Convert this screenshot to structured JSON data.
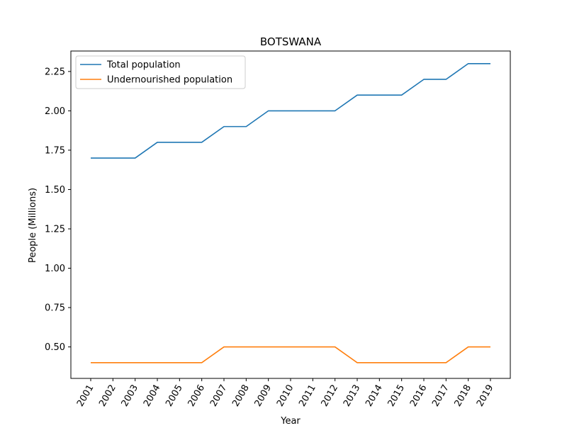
{
  "chart_data": {
    "type": "line",
    "title": "BOTSWANA",
    "xlabel": "Year",
    "ylabel": "People (Millions)",
    "x": [
      "2001",
      "2002",
      "2003",
      "2004",
      "2005",
      "2006",
      "2007",
      "2008",
      "2009",
      "2010",
      "2011",
      "2012",
      "2013",
      "2014",
      "2015",
      "2016",
      "2017",
      "2018",
      "2019"
    ],
    "ylim": [
      0.3,
      2.38
    ],
    "yticks": [
      "0.50",
      "0.75",
      "1.00",
      "1.25",
      "1.50",
      "1.75",
      "2.00",
      "2.25"
    ],
    "grid": false,
    "legend_position": "top-left",
    "series": [
      {
        "name": "Total population",
        "color": "#1f77b4",
        "values": [
          1.7,
          1.7,
          1.7,
          1.8,
          1.8,
          1.8,
          1.9,
          1.9,
          2.0,
          2.0,
          2.0,
          2.0,
          2.1,
          2.1,
          2.1,
          2.2,
          2.2,
          2.3,
          2.3
        ]
      },
      {
        "name": "Undernourished population",
        "color": "#ff7f0e",
        "values": [
          0.4,
          0.4,
          0.4,
          0.4,
          0.4,
          0.4,
          0.5,
          0.5,
          0.5,
          0.5,
          0.5,
          0.5,
          0.4,
          0.4,
          0.4,
          0.4,
          0.4,
          0.5,
          0.5
        ]
      }
    ]
  }
}
